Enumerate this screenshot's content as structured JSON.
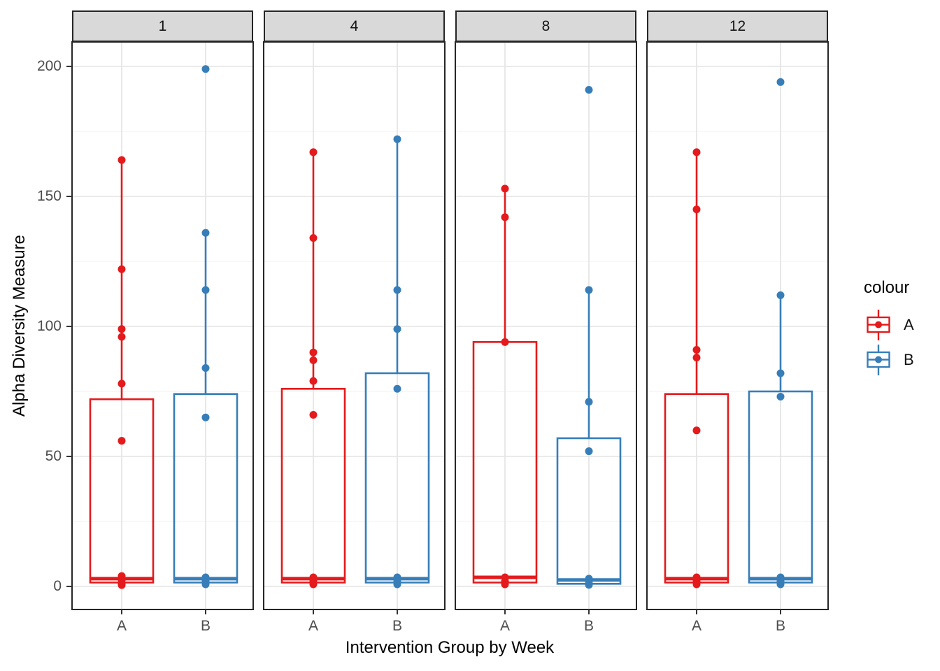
{
  "chart_data": {
    "type": "boxplot",
    "title": "",
    "xlabel": "Intervention Group by Week",
    "ylabel": "Alpha Diversity Measure",
    "groups": [
      "A",
      "B"
    ],
    "colors": {
      "A": "#E41A1C",
      "B": "#377EB8"
    },
    "y_ticks": [
      0,
      50,
      100,
      150,
      200
    ],
    "y_minor_ticks": [
      25,
      75,
      125,
      175
    ],
    "grid": true,
    "legend": {
      "title": "colour",
      "position": "right",
      "entries": [
        {
          "label": "A",
          "color": "#E41A1C"
        },
        {
          "label": "B",
          "color": "#377EB8"
        }
      ]
    },
    "facets": [
      {
        "label": "1",
        "boxes": [
          {
            "group": "A",
            "whisker_low": 0.5,
            "q1": 1.5,
            "median": 3,
            "q3": 72,
            "whisker_high": 164,
            "outliers": [],
            "points": [
              164,
              122,
              99,
              96,
              78,
              56,
              4,
              2.5,
              1,
              0.5
            ]
          },
          {
            "group": "B",
            "whisker_low": 0.5,
            "q1": 1.5,
            "median": 3,
            "q3": 74,
            "whisker_high": 136,
            "outliers": [
              199
            ],
            "points": [
              199,
              136,
              114,
              84,
              65,
              3.5,
              2,
              0.8
            ]
          }
        ]
      },
      {
        "label": "4",
        "boxes": [
          {
            "group": "A",
            "whisker_low": 0.5,
            "q1": 1.5,
            "median": 3,
            "q3": 76,
            "whisker_high": 167,
            "outliers": [],
            "points": [
              167,
              134,
              90,
              87,
              79,
              66,
              3.5,
              2,
              0.8
            ]
          },
          {
            "group": "B",
            "whisker_low": 0.5,
            "q1": 1.5,
            "median": 3,
            "q3": 82,
            "whisker_high": 172,
            "outliers": [],
            "points": [
              172,
              114,
              99,
              76,
              3.5,
              2,
              0.8
            ]
          }
        ]
      },
      {
        "label": "8",
        "boxes": [
          {
            "group": "A",
            "whisker_low": 0.5,
            "q1": 1.5,
            "median": 3.5,
            "q3": 94,
            "whisker_high": 153,
            "outliers": [],
            "points": [
              153,
              142,
              94,
              3.5,
              2,
              0.8
            ]
          },
          {
            "group": "B",
            "whisker_low": 0.5,
            "q1": 1,
            "median": 2.5,
            "q3": 57,
            "whisker_high": 114,
            "outliers": [
              191
            ],
            "points": [
              191,
              114,
              71,
              52,
              3,
              1.8,
              0.6
            ]
          }
        ]
      },
      {
        "label": "12",
        "boxes": [
          {
            "group": "A",
            "whisker_low": 0.5,
            "q1": 1.5,
            "median": 3,
            "q3": 74,
            "whisker_high": 167,
            "outliers": [],
            "points": [
              167,
              145,
              91,
              88,
              60,
              3.5,
              2,
              0.8
            ]
          },
          {
            "group": "B",
            "whisker_low": 0.5,
            "q1": 1.5,
            "median": 3,
            "q3": 75,
            "whisker_high": 112,
            "outliers": [
              194
            ],
            "points": [
              194,
              112,
              82,
              73,
              3.5,
              2,
              0.8
            ]
          }
        ]
      }
    ]
  }
}
